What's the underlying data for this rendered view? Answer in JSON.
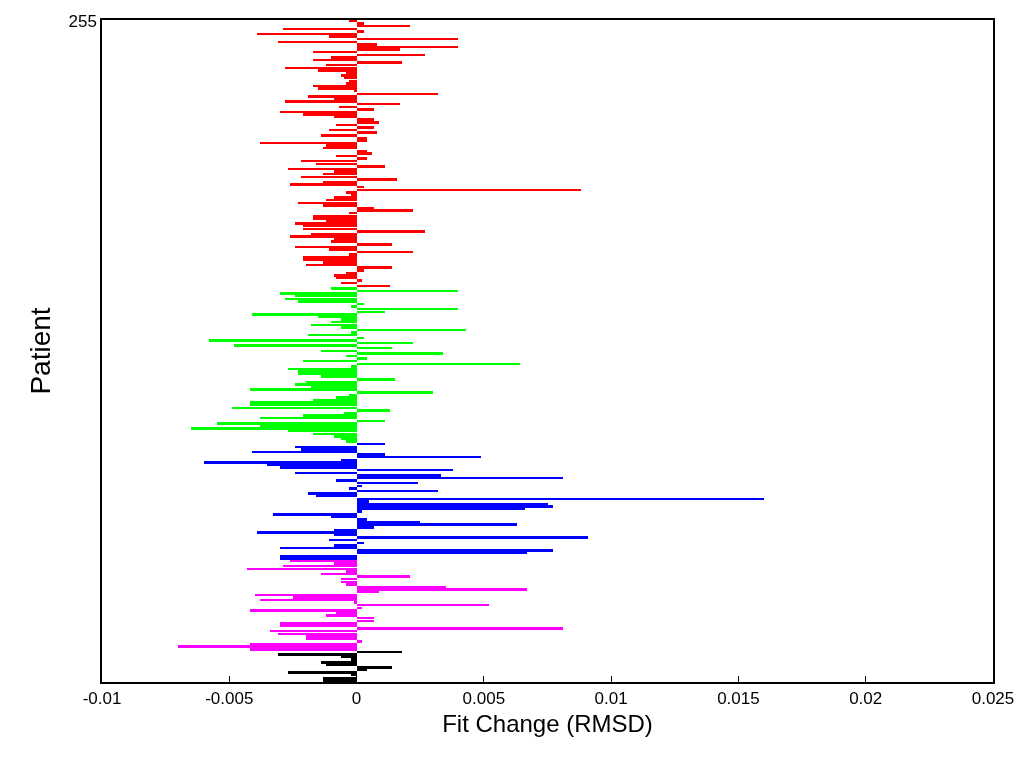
{
  "chart_data": {
    "type": "bar",
    "orientation": "horizontal",
    "xlabel": "Fit Change (RMSD)",
    "ylabel": "Patient",
    "xlim": [
      -0.01,
      0.025
    ],
    "xticks": [
      -0.01,
      -0.005,
      0,
      0.005,
      0.01,
      0.015,
      0.02,
      0.025
    ],
    "categories": [
      "255",
      null,
      null,
      null,
      null,
      null,
      null,
      null,
      null,
      null,
      null,
      null,
      null,
      null,
      null,
      null,
      null,
      null,
      null,
      null,
      null,
      null,
      null,
      null,
      null,
      null,
      null,
      null,
      null,
      null,
      null,
      null,
      null,
      null,
      null,
      null,
      null,
      null,
      null,
      null,
      null,
      null,
      null,
      null,
      null,
      null,
      null,
      null,
      null,
      null,
      null,
      null,
      null,
      null,
      null,
      null,
      null,
      null,
      null,
      null,
      null,
      null,
      null,
      null,
      null,
      null,
      null,
      null,
      null,
      null,
      null,
      null,
      null,
      null,
      null,
      null,
      null,
      null,
      null,
      null,
      null,
      null,
      null,
      null,
      null,
      null,
      null,
      null,
      null,
      null,
      null,
      null,
      null,
      null,
      null,
      null,
      null,
      null,
      null,
      null,
      null,
      null,
      null,
      null,
      null,
      null,
      null,
      null,
      null,
      null,
      null,
      null,
      null,
      null,
      null,
      null,
      null,
      null,
      null,
      null,
      null,
      null,
      null,
      null,
      null,
      null,
      null,
      null,
      null,
      null,
      null,
      null,
      null,
      null,
      null,
      null,
      null,
      null,
      null,
      null,
      null,
      null,
      null,
      null,
      null,
      null,
      null,
      null,
      null,
      null,
      null,
      null,
      null,
      null,
      null,
      null,
      null,
      null,
      null,
      null,
      null,
      null,
      null,
      null,
      null,
      null,
      null,
      null,
      null,
      null,
      null,
      null,
      null,
      null,
      null,
      null,
      null,
      null,
      null,
      null,
      null,
      null,
      null,
      null,
      null,
      null,
      null,
      null,
      null,
      null,
      null,
      null,
      null,
      null,
      null,
      null,
      null,
      null,
      null,
      null,
      null,
      null,
      null,
      null,
      null,
      null,
      null,
      null,
      null,
      null,
      null,
      null,
      null,
      null,
      null,
      null,
      null,
      null,
      null,
      null,
      null,
      null,
      null,
      null,
      null,
      null,
      null,
      null,
      null,
      null,
      null,
      null,
      null,
      null,
      null,
      null,
      null,
      null,
      null,
      null,
      null,
      null,
      null,
      null,
      null,
      null,
      null,
      null,
      null,
      null,
      null,
      null,
      null,
      null,
      null
    ],
    "values": [
      -0.0003,
      0.0003,
      0.0021,
      -0.0029,
      0.0003,
      -0.0039,
      -0.0011,
      0.004,
      -0.0031,
      0.0008,
      0.004,
      0.0017,
      -0.0017,
      0.0027,
      -0.001,
      -0.0017,
      0.0018,
      -0.0012,
      -0.0028,
      -0.0015,
      -0.0004,
      -0.0006,
      -0.0005,
      -0.0003,
      -0.0004,
      -0.0017,
      -0.0015,
      -0.0001,
      0.0032,
      -0.0019,
      -0.0009,
      -0.0028,
      0.0017,
      -0.0007,
      0.0007,
      -0.003,
      -0.0021,
      -0.0009,
      0.0007,
      0.0009,
      -0.0008,
      0.0007,
      -0.0011,
      0.0008,
      -0.0014,
      0.0004,
      0.0004,
      -0.0038,
      -0.0012,
      -0.0013,
      0.0004,
      0.0006,
      -0.0008,
      0.0004,
      -0.0022,
      -0.0016,
      0.0011,
      -0.0027,
      -0.0009,
      -0.0013,
      -0.0022,
      0.0016,
      -0.0013,
      -0.0026,
      0.0003,
      0.0088,
      -0.0004,
      -0.0002,
      -0.0009,
      -0.0012,
      -0.0023,
      -0.0013,
      0.0007,
      0.0022,
      -0.0003,
      -0.0017,
      -0.0017,
      -0.0012,
      -0.0024,
      -0.0021,
      -0.0021,
      0.0027,
      -0.0018,
      -0.0026,
      -0.0009,
      -0.001,
      0.0014,
      -0.0024,
      -0.0011,
      0.0022,
      -0.0003,
      -0.0021,
      -0.0021,
      -0.0013,
      -0.002,
      0.0014,
      0.0003,
      -0.0004,
      -0.0009,
      -0.0008,
      0.0002,
      -0.0006,
      0.0013,
      -0.001,
      0.004,
      -0.003,
      -0.0024,
      -0.0028,
      -0.0023,
      0.0003,
      -0.0002,
      0.004,
      0.0011,
      -0.0041,
      -0.0015,
      -0.0006,
      -0.001,
      -0.0018,
      -0.0006,
      0.0043,
      -0.0002,
      -0.0019,
      0.0003,
      -0.0058,
      0.0022,
      -0.0048,
      0.0014,
      -0.0014,
      0.0034,
      -0.0004,
      0.0004,
      -0.0021,
      0.0064,
      -0.0002,
      -0.0027,
      -0.0023,
      -0.0023,
      -0.0014,
      0.0015,
      -0.002,
      -0.0024,
      -0.0018,
      -0.0042,
      0.003,
      -0.0003,
      -0.0008,
      -0.0017,
      -0.0042,
      -0.0042,
      -0.0049,
      0.0013,
      -0.0005,
      -0.0021,
      -0.0038,
      0.0011,
      -0.0055,
      -0.0038,
      -0.0065,
      -0.0027,
      -0.0017,
      -0.0009,
      -0.0006,
      -0.0004,
      0.0011,
      -0.0024,
      -0.0022,
      -0.0041,
      0.0011,
      0.0049,
      -0.0006,
      -0.006,
      -0.0035,
      -0.003,
      0.0038,
      -0.0024,
      0.0033,
      0.0081,
      -0.0008,
      0.0024,
      0.0002,
      -0.0003,
      0.0032,
      -0.0019,
      -0.0016,
      0.016,
      0.0005,
      0.0075,
      0.0077,
      0.0066,
      0.0002,
      -0.0033,
      -0.001,
      0.0004,
      0.0025,
      0.0063,
      0.0007,
      -0.0009,
      -0.0039,
      -0.0009,
      0.0091,
      -0.0011,
      0.0003,
      -0.0009,
      -0.003,
      0.0077,
      0.0067,
      -0.003,
      -0.003,
      -0.0026,
      -0.0009,
      -0.0029,
      -0.0043,
      -0.0004,
      -0.0014,
      0.0021,
      -0.0006,
      -0.0006,
      -0.0004,
      0.0035,
      0.0067,
      0.0009,
      -0.004,
      -0.0025,
      -0.0038,
      -0.0001,
      0.0052,
      0.0002,
      -0.0042,
      -0.0008,
      -0.0012,
      0.0007,
      0.0007,
      -0.003,
      -0.003,
      0.0081,
      -0.0034,
      -0.0031,
      -0.002,
      -0.002,
      0.0002,
      -0.0042,
      -0.007,
      -0.0042,
      0.0018,
      -0.0031,
      -0.0006,
      -0.0002,
      -0.0014,
      -0.0012,
      0.0014,
      0.0004,
      -0.0027,
      -0.0002,
      -0.0013,
      -0.0013
    ],
    "colors": [
      "#ff0000",
      "#ff0000",
      "#ff0000",
      "#ff0000",
      "#ff0000",
      "#ff0000",
      "#ff0000",
      "#ff0000",
      "#ff0000",
      "#ff0000",
      "#ff0000",
      "#ff0000",
      "#ff0000",
      "#ff0000",
      "#ff0000",
      "#ff0000",
      "#ff0000",
      "#ff0000",
      "#ff0000",
      "#ff0000",
      "#ff0000",
      "#ff0000",
      "#ff0000",
      "#ff0000",
      "#ff0000",
      "#ff0000",
      "#ff0000",
      "#ff0000",
      "#ff0000",
      "#ff0000",
      "#ff0000",
      "#ff0000",
      "#ff0000",
      "#ff0000",
      "#ff0000",
      "#ff0000",
      "#ff0000",
      "#ff0000",
      "#ff0000",
      "#ff0000",
      "#ff0000",
      "#ff0000",
      "#ff0000",
      "#ff0000",
      "#ff0000",
      "#ff0000",
      "#ff0000",
      "#ff0000",
      "#ff0000",
      "#ff0000",
      "#ff0000",
      "#ff0000",
      "#ff0000",
      "#ff0000",
      "#ff0000",
      "#ff0000",
      "#ff0000",
      "#ff0000",
      "#ff0000",
      "#ff0000",
      "#ff0000",
      "#ff0000",
      "#ff0000",
      "#ff0000",
      "#ff0000",
      "#ff0000",
      "#ff0000",
      "#ff0000",
      "#ff0000",
      "#ff0000",
      "#ff0000",
      "#ff0000",
      "#ff0000",
      "#ff0000",
      "#ff0000",
      "#ff0000",
      "#ff0000",
      "#ff0000",
      "#ff0000",
      "#ff0000",
      "#ff0000",
      "#ff0000",
      "#ff0000",
      "#ff0000",
      "#ff0000",
      "#ff0000",
      "#ff0000",
      "#ff0000",
      "#ff0000",
      "#ff0000",
      "#ff0000",
      "#ff0000",
      "#ff0000",
      "#ff0000",
      "#ff0000",
      "#ff0000",
      "#ff0000",
      "#ff0000",
      "#ff0000",
      "#ff0000",
      "#ff0000",
      "#ff0000",
      "#ff0000",
      "#00ff00",
      "#00ff00",
      "#00ff00",
      "#00ff00",
      "#00ff00",
      "#00ff00",
      "#00ff00",
      "#00ff00",
      "#00ff00",
      "#00ff00",
      "#00ff00",
      "#00ff00",
      "#00ff00",
      "#00ff00",
      "#00ff00",
      "#00ff00",
      "#00ff00",
      "#00ff00",
      "#00ff00",
      "#00ff00",
      "#00ff00",
      "#00ff00",
      "#00ff00",
      "#00ff00",
      "#00ff00",
      "#00ff00",
      "#00ff00",
      "#00ff00",
      "#00ff00",
      "#00ff00",
      "#00ff00",
      "#00ff00",
      "#00ff00",
      "#00ff00",
      "#00ff00",
      "#00ff00",
      "#00ff00",
      "#00ff00",
      "#00ff00",
      "#00ff00",
      "#00ff00",
      "#00ff00",
      "#00ff00",
      "#00ff00",
      "#00ff00",
      "#00ff00",
      "#00ff00",
      "#00ff00",
      "#00ff00",
      "#00ff00",
      "#00ff00",
      "#00ff00",
      "#00ff00",
      "#00ff00",
      "#00ff00",
      "#00ff00",
      "#00ff00",
      "#00ff00",
      "#00ff00",
      "#00ff00",
      "#0000ff",
      "#0000ff",
      "#0000ff",
      "#0000ff",
      "#0000ff",
      "#0000ff",
      "#0000ff",
      "#0000ff",
      "#0000ff",
      "#0000ff",
      "#0000ff",
      "#0000ff",
      "#0000ff",
      "#0000ff",
      "#0000ff",
      "#0000ff",
      "#0000ff",
      "#0000ff",
      "#0000ff",
      "#0000ff",
      "#0000ff",
      "#0000ff",
      "#0000ff",
      "#0000ff",
      "#0000ff",
      "#0000ff",
      "#0000ff",
      "#0000ff",
      "#0000ff",
      "#0000ff",
      "#0000ff",
      "#0000ff",
      "#0000ff",
      "#0000ff",
      "#0000ff",
      "#0000ff",
      "#0000ff",
      "#0000ff",
      "#0000ff",
      "#0000ff",
      "#0000ff",
      "#0000ff",
      "#0000ff",
      "#0000ff",
      "#0000ff",
      "#ff00ff",
      "#ff00ff",
      "#ff00ff",
      "#ff00ff",
      "#ff00ff",
      "#ff00ff",
      "#ff00ff",
      "#ff00ff",
      "#ff00ff",
      "#ff00ff",
      "#ff00ff",
      "#ff00ff",
      "#ff00ff",
      "#ff00ff",
      "#ff00ff",
      "#ff00ff",
      "#ff00ff",
      "#ff00ff",
      "#ff00ff",
      "#ff00ff",
      "#ff00ff",
      "#ff00ff",
      "#ff00ff",
      "#ff00ff",
      "#ff00ff",
      "#ff00ff",
      "#ff00ff",
      "#ff00ff",
      "#ff00ff",
      "#ff00ff",
      "#ff00ff",
      "#ff00ff",
      "#ff00ff",
      "#ff00ff",
      "#ff00ff",
      "#000000",
      "#000000",
      "#000000",
      "#000000",
      "#000000",
      "#000000",
      "#000000",
      "#000000",
      "#000000",
      "#000000",
      "#000000",
      "#000000"
    ]
  }
}
